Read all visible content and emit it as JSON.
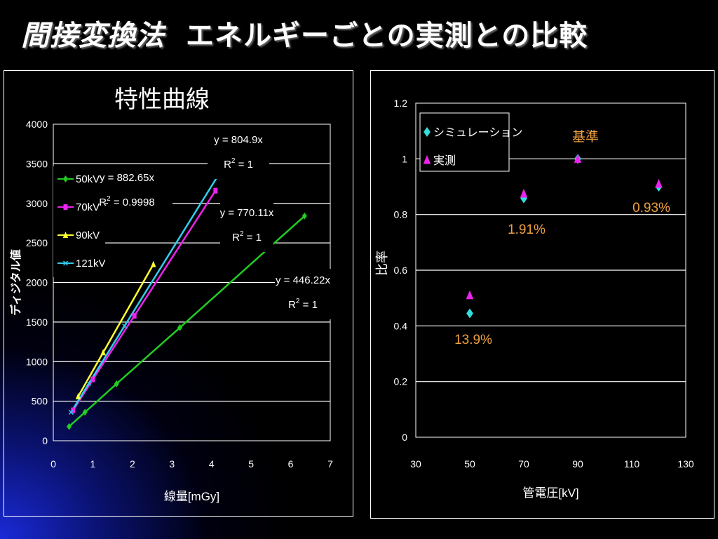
{
  "slide": {
    "title_part1": "間接変換法",
    "title_part2": "エネルギーごとの実測との比較"
  },
  "colors": {
    "background": "#000000",
    "text": "#ffffff",
    "annotation": "#f0a040"
  },
  "chart_data": [
    {
      "type": "line",
      "title": "特性曲線",
      "xlabel": "線量[mGy]",
      "ylabel": "ディジタル値",
      "xlim": [
        0,
        7
      ],
      "ylim": [
        0,
        4000
      ],
      "x_ticks": [
        "0",
        "1",
        "2",
        "3",
        "4",
        "5",
        "6",
        "7"
      ],
      "y_ticks": [
        "0",
        "500",
        "1000",
        "1500",
        "2000",
        "2500",
        "3000",
        "3500",
        "4000"
      ],
      "grid": true,
      "legend_position": "top-left",
      "series": [
        {
          "name": "50kV",
          "color": "#22cc22",
          "marker": "diamond",
          "x": [
            0.4,
            0.8,
            1.6,
            3.2,
            6.35
          ],
          "y": [
            180,
            360,
            720,
            1430,
            2840
          ]
        },
        {
          "name": "70kV",
          "color": "#ee22ee",
          "marker": "square",
          "x": [
            0.5,
            1.0,
            2.05,
            4.1
          ],
          "y": [
            385,
            775,
            1580,
            3160
          ]
        },
        {
          "name": "90kV",
          "color": "#ffff33",
          "marker": "triangle",
          "x": [
            0.63,
            1.26,
            2.53
          ],
          "y": [
            560,
            1115,
            2230
          ]
        },
        {
          "name": "121kV",
          "color": "#33ccee",
          "marker": "x",
          "x": [
            0.45,
            0.9,
            1.8,
            4.25
          ],
          "y": [
            360,
            725,
            1450,
            3420
          ]
        }
      ],
      "annotations": [
        {
          "line1": "y = 804.9x",
          "line2": "R",
          "sup": "2",
          "line2b": " = 1"
        },
        {
          "line1": "y = 882.65x",
          "line2": "R",
          "sup": "2",
          "line2b": " = 0.9998"
        },
        {
          "line1": "y = 770.11x",
          "line2": "R",
          "sup": "2",
          "line2b": " = 1"
        },
        {
          "line1": "y = 446.22x",
          "line2": "R",
          "sup": "2",
          "line2b": " = 1"
        }
      ]
    },
    {
      "type": "scatter",
      "xlabel": "管電圧[kV]",
      "ylabel": "比率",
      "xlim": [
        30,
        130
      ],
      "ylim": [
        0,
        1.2
      ],
      "x_ticks": [
        "30",
        "50",
        "70",
        "90",
        "110",
        "130"
      ],
      "y_ticks": [
        "0",
        "0.2",
        "0.4",
        "0.6",
        "0.8",
        "1",
        "1.2"
      ],
      "grid": true,
      "legend_position": "top-left",
      "series": [
        {
          "name": "シミュレーション",
          "color": "#33dddd",
          "marker": "diamond",
          "x": [
            50,
            70,
            90,
            120
          ],
          "y": [
            0.445,
            0.858,
            1.0,
            0.9
          ]
        },
        {
          "name": "実測",
          "color": "#ee22ee",
          "marker": "triangle",
          "x": [
            50,
            70,
            90,
            120
          ],
          "y": [
            0.51,
            0.875,
            1.0,
            0.91
          ]
        }
      ],
      "annotations": [
        {
          "text": "基準"
        },
        {
          "text": "1.91%"
        },
        {
          "text": "0.93%"
        },
        {
          "text": "13.9%"
        }
      ]
    }
  ]
}
